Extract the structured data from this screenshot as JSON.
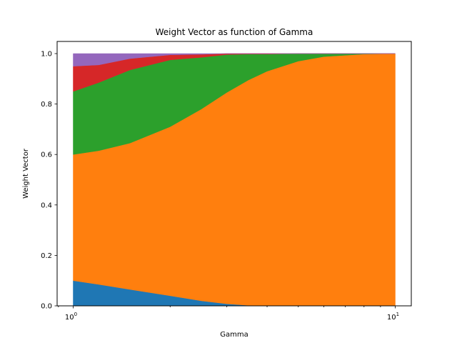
{
  "chart_data": {
    "type": "area",
    "stacked": true,
    "title": "Weight Vector as function of Gamma",
    "xlabel": "Gamma",
    "ylabel": "Weight Vector",
    "xscale": "log",
    "xlim": [
      1,
      10
    ],
    "ylim": [
      0.0,
      1.0
    ],
    "grid": false,
    "x": [
      1.0,
      1.2,
      1.5,
      2.0,
      2.5,
      3.0,
      3.5,
      4.0,
      5.0,
      6.0,
      8.0,
      10.0
    ],
    "series": [
      {
        "color": "#1f77b4",
        "values": [
          0.1,
          0.085,
          0.065,
          0.04,
          0.02,
          0.008,
          0.002,
          0.0,
          0.0,
          0.0,
          0.0,
          0.0
        ]
      },
      {
        "color": "#ff7f0e",
        "values": [
          0.5,
          0.53,
          0.58,
          0.67,
          0.76,
          0.838,
          0.893,
          0.93,
          0.97,
          0.988,
          0.998,
          1.0
        ]
      },
      {
        "color": "#2ca02c",
        "values": [
          0.25,
          0.27,
          0.29,
          0.265,
          0.205,
          0.15,
          0.103,
          0.068,
          0.03,
          0.012,
          0.002,
          0.0
        ]
      },
      {
        "color": "#d62728",
        "values": [
          0.1,
          0.07,
          0.045,
          0.02,
          0.012,
          0.004,
          0.002,
          0.002,
          0.0,
          0.0,
          0.0,
          0.0
        ]
      },
      {
        "color": "#9467bd",
        "values": [
          0.05,
          0.045,
          0.02,
          0.005,
          0.003,
          0.0,
          0.0,
          0.0,
          0.0,
          0.0,
          0.0,
          0.0
        ]
      }
    ],
    "x_ticks": [
      {
        "value": 1,
        "base": "10",
        "exp": "0"
      },
      {
        "value": 10,
        "base": "10",
        "exp": "1"
      }
    ],
    "y_ticks": [
      {
        "value": 0.0,
        "label": "0.0"
      },
      {
        "value": 0.2,
        "label": "0.2"
      },
      {
        "value": 0.4,
        "label": "0.4"
      },
      {
        "value": 0.6,
        "label": "0.6"
      },
      {
        "value": 0.8,
        "label": "0.8"
      },
      {
        "value": 1.0,
        "label": "1.0"
      }
    ]
  }
}
